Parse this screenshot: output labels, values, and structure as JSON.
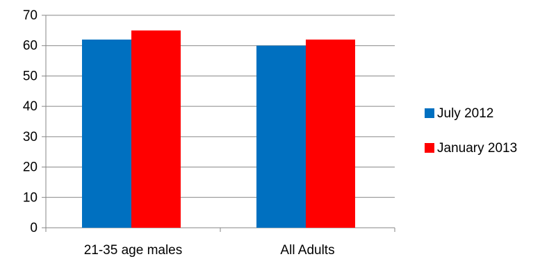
{
  "chart_data": {
    "type": "bar",
    "title": "",
    "xlabel": "",
    "ylabel": "",
    "categories": [
      "21-35 age males",
      "All Adults"
    ],
    "series": [
      {
        "name": "July 2012",
        "values": [
          62,
          60
        ],
        "color": "#0070C0"
      },
      {
        "name": "January 2013",
        "values": [
          65,
          62
        ],
        "color": "#FF0000"
      }
    ],
    "ylim": [
      0,
      70
    ],
    "yticks": [
      0,
      10,
      20,
      30,
      40,
      50,
      60,
      70
    ],
    "grid": true,
    "legend_position": "right"
  }
}
